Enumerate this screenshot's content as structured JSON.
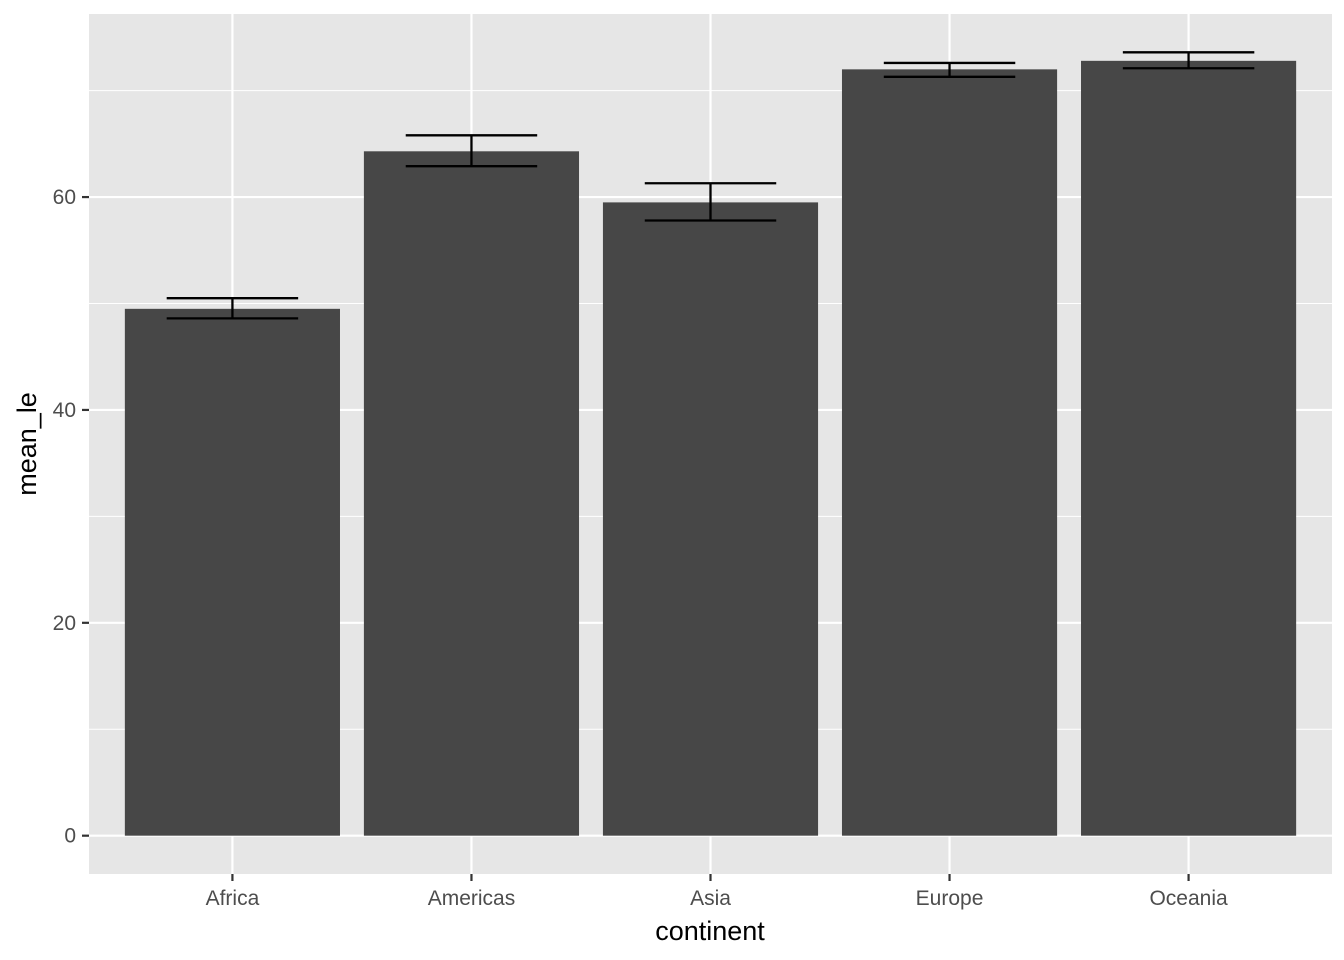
{
  "chart_data": {
    "type": "bar",
    "categories": [
      "Africa",
      "Americas",
      "Asia",
      "Europe",
      "Oceania"
    ],
    "values": [
      49.5,
      64.3,
      59.5,
      72.0,
      72.8
    ],
    "error_bars": [
      {
        "lower": 48.6,
        "upper": 50.5
      },
      {
        "lower": 62.9,
        "upper": 65.8
      },
      {
        "lower": 57.8,
        "upper": 61.3
      },
      {
        "lower": 71.3,
        "upper": 72.6
      },
      {
        "lower": 72.1,
        "upper": 73.6
      }
    ],
    "title": "",
    "xlabel": "continent",
    "ylabel": "mean_le",
    "ylim": [
      -3.6,
      77.2
    ],
    "yticks": [
      0,
      20,
      40,
      60
    ],
    "ytick_labels": [
      "0",
      "20",
      "40",
      "60"
    ],
    "yminor": [
      10,
      30,
      50,
      70
    ],
    "grid": true,
    "legend": "none",
    "colors": {
      "panel": "#e6e6e6",
      "grid": "#ffffff",
      "bar": "#474747",
      "errorbar": "#000000",
      "tick": "#333333",
      "tick_text": "#4d4d4d",
      "title_text": "#000000"
    }
  }
}
